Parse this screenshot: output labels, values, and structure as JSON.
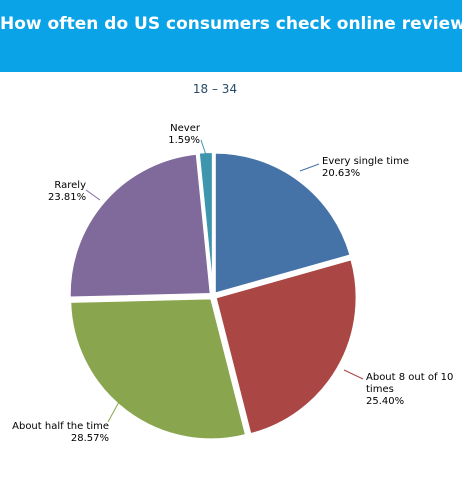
{
  "chart_data": {
    "type": "pie",
    "title": "How often do US consumers check online reviews?",
    "subtitle": "18 – 34",
    "categories": [
      "Every single time",
      "About 8 out of 10 times",
      "About half the time",
      "Rarely",
      "Never"
    ],
    "values": [
      20.63,
      25.4,
      28.57,
      23.81,
      1.59
    ],
    "value_labels": [
      "20.63%",
      "25.40%",
      "28.57%",
      "23.81%",
      "1.59%"
    ],
    "colors": [
      "#4572a7",
      "#aa4643",
      "#89a54e",
      "#80699b",
      "#3d96ae"
    ]
  }
}
